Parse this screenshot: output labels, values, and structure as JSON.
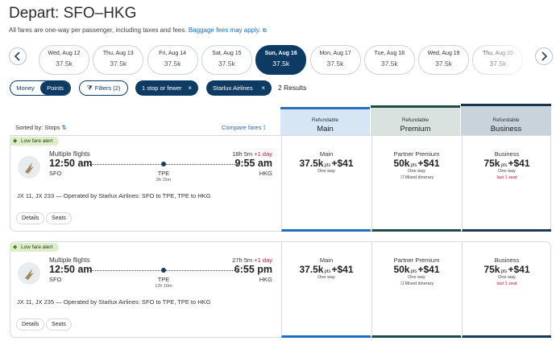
{
  "header": {
    "title": "Depart: SFO–HKG",
    "subtitle": "All fares are one-way per passenger, including taxes and fees.",
    "link": "Baggage fees may apply."
  },
  "dates": [
    {
      "day": "Wed, Aug 12",
      "price": "37.5k"
    },
    {
      "day": "Thu, Aug 13",
      "price": "37.5k"
    },
    {
      "day": "Fri, Aug 14",
      "price": "37.5k"
    },
    {
      "day": "Sat, Aug 15",
      "price": "37.5k"
    },
    {
      "day": "Sun, Aug 16",
      "price": "37.5k"
    },
    {
      "day": "Mon, Aug 17",
      "price": "37.5k"
    },
    {
      "day": "Tue, Aug 18",
      "price": "37.5k"
    },
    {
      "day": "Wed, Aug 19",
      "price": "37.5k"
    },
    {
      "day": "Thu, Aug 20",
      "price": "37.5k"
    }
  ],
  "toggle": [
    "Money",
    "Points"
  ],
  "filters": {
    "button": "Filters (2)",
    "chips": [
      "1 stop or fewer",
      "Starlux Airlines"
    ],
    "results": "2 Results"
  },
  "sort": "Sorted by: Stops",
  "compare": "Compare fares",
  "columns": [
    {
      "tag": "Refundable",
      "name": "Main"
    },
    {
      "tag": "Refundable",
      "name": "Premium"
    },
    {
      "tag": "Refundable",
      "name": "Business"
    }
  ],
  "flights": [
    {
      "badge": "Low fare alert",
      "route_label": "Multiple flights",
      "duration": "18h 5m",
      "day_change": "+1 day",
      "depart_time": "12:50 am",
      "arrive_time": "9:55 am",
      "origin": "SFO",
      "stop": "TPE",
      "layover": "3h 15m",
      "destination": "HKG",
      "description": "JX 11, JX 233 — Operated by Starlux Airlines: SFO to TPE, TPE to HKG",
      "buttons": [
        "Details",
        "Seats"
      ],
      "fares": [
        {
          "label": "Main",
          "points": "37.5k",
          "unit": "pts",
          "fee": "+$41",
          "note": "One way"
        },
        {
          "label": "Partner Premium",
          "points": "50k",
          "unit": "pts",
          "fee": "+$41",
          "note": "One way",
          "extra": "Mixed itinerary"
        },
        {
          "label": "Business",
          "points": "75k",
          "unit": "pts",
          "fee": "+$41",
          "note": "One way",
          "extra": "last 1 seat"
        }
      ]
    },
    {
      "badge": "Low fare alert",
      "route_label": "Multiple flights",
      "duration": "27h 5m",
      "day_change": "+1 day",
      "depart_time": "12:50 am",
      "arrive_time": "6:55 pm",
      "origin": "SFO",
      "stop": "TPE",
      "layover": "12h 10m",
      "destination": "HKG",
      "description": "JX 11, JX 235 — Operated by Starlux Airlines: SFO to TPE, TPE to HKG",
      "buttons": [
        "Details",
        "Seats"
      ],
      "fares": [
        {
          "label": "Main",
          "points": "37.5k",
          "unit": "pts",
          "fee": "+$41",
          "note": "One way"
        },
        {
          "label": "Partner Premium",
          "points": "50k",
          "unit": "pts",
          "fee": "+$41",
          "note": "One way",
          "extra": "Mixed itinerary"
        },
        {
          "label": "Business",
          "points": "75k",
          "unit": "pts",
          "fee": "+$41",
          "note": "One way",
          "extra": "last 1 seat"
        }
      ]
    }
  ]
}
